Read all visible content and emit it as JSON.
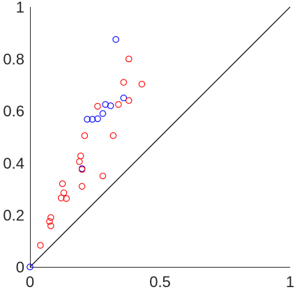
{
  "chart_data": {
    "type": "scatter",
    "title": "",
    "xlabel": "",
    "ylabel": "",
    "xlim": [
      0,
      1
    ],
    "ylim": [
      0,
      1
    ],
    "grid": false,
    "legend": "none",
    "x_ticks": [
      0,
      0.5,
      1
    ],
    "x_tick_labels": [
      "0",
      "0.5",
      "1"
    ],
    "y_ticks": [
      0,
      0.2,
      0.4,
      0.6,
      0.8,
      1
    ],
    "y_tick_labels": [
      "0",
      "0.2",
      "0.4",
      "0.6",
      "0.8",
      "1"
    ],
    "reference_line": {
      "x": [
        0,
        1
      ],
      "y": [
        0,
        1
      ],
      "color": "#000000"
    },
    "series": [
      {
        "color": "#0000ff",
        "points": [
          {
            "x": 0.0,
            "y": 0.0
          },
          {
            "x": 0.33,
            "y": 0.875
          },
          {
            "x": 0.36,
            "y": 0.65
          },
          {
            "x": 0.31,
            "y": 0.62
          },
          {
            "x": 0.29,
            "y": 0.625
          },
          {
            "x": 0.28,
            "y": 0.59
          },
          {
            "x": 0.26,
            "y": 0.57
          },
          {
            "x": 0.24,
            "y": 0.568
          },
          {
            "x": 0.22,
            "y": 0.568
          },
          {
            "x": 0.2,
            "y": 0.378
          }
        ]
      },
      {
        "color": "#ff0000",
        "points": [
          {
            "x": 0.04,
            "y": 0.083
          },
          {
            "x": 0.08,
            "y": 0.158
          },
          {
            "x": 0.075,
            "y": 0.175
          },
          {
            "x": 0.08,
            "y": 0.19
          },
          {
            "x": 0.12,
            "y": 0.265
          },
          {
            "x": 0.14,
            "y": 0.263
          },
          {
            "x": 0.13,
            "y": 0.285
          },
          {
            "x": 0.125,
            "y": 0.32
          },
          {
            "x": 0.2,
            "y": 0.31
          },
          {
            "x": 0.2,
            "y": 0.375
          },
          {
            "x": 0.19,
            "y": 0.405
          },
          {
            "x": 0.195,
            "y": 0.427
          },
          {
            "x": 0.21,
            "y": 0.505
          },
          {
            "x": 0.28,
            "y": 0.35
          },
          {
            "x": 0.32,
            "y": 0.505
          },
          {
            "x": 0.26,
            "y": 0.618
          },
          {
            "x": 0.34,
            "y": 0.625
          },
          {
            "x": 0.38,
            "y": 0.64
          },
          {
            "x": 0.36,
            "y": 0.71
          },
          {
            "x": 0.43,
            "y": 0.703
          },
          {
            "x": 0.38,
            "y": 0.8
          }
        ]
      }
    ]
  }
}
